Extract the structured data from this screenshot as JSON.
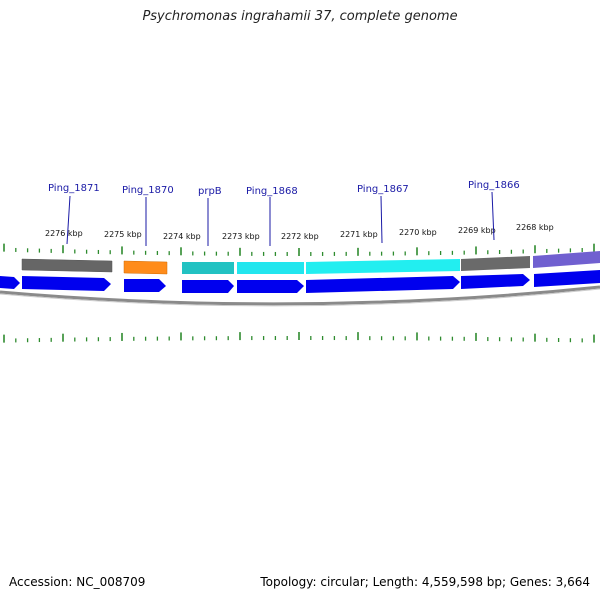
{
  "header": {
    "title": "Psychromonas ingrahamii 37, complete genome"
  },
  "footer": {
    "accession": "Accession: NC_008709",
    "summary": "Topology: circular; Length: 4,559,598 bp; Genes: 3,664"
  },
  "scale": {
    "tick_labels": [
      "2276 kbp",
      "2275 kbp",
      "2274 kbp",
      "2273 kbp",
      "2272 kbp",
      "2271 kbp",
      "2270 kbp",
      "2269 kbp",
      "2268 kbp"
    ]
  },
  "genes": [
    {
      "label": "Ping_1871",
      "color": "#666666"
    },
    {
      "label": "Ping_1870",
      "color": "#ff8c1a"
    },
    {
      "label": "prpB",
      "color": "#22c2c2"
    },
    {
      "label": "Ping_1868",
      "color": "#22e6ee"
    },
    {
      "label": "Ping_1867",
      "color": "#22eef0"
    },
    {
      "label": "Ping_1866",
      "color": "#6a6a6a"
    }
  ],
  "colors": {
    "cds_strand": "#0000ee",
    "tick_green": "#2e8b2e",
    "backbone": "#8a8a8a",
    "label_line": "#1a1aa6",
    "purple_feature": "#7060d0"
  }
}
